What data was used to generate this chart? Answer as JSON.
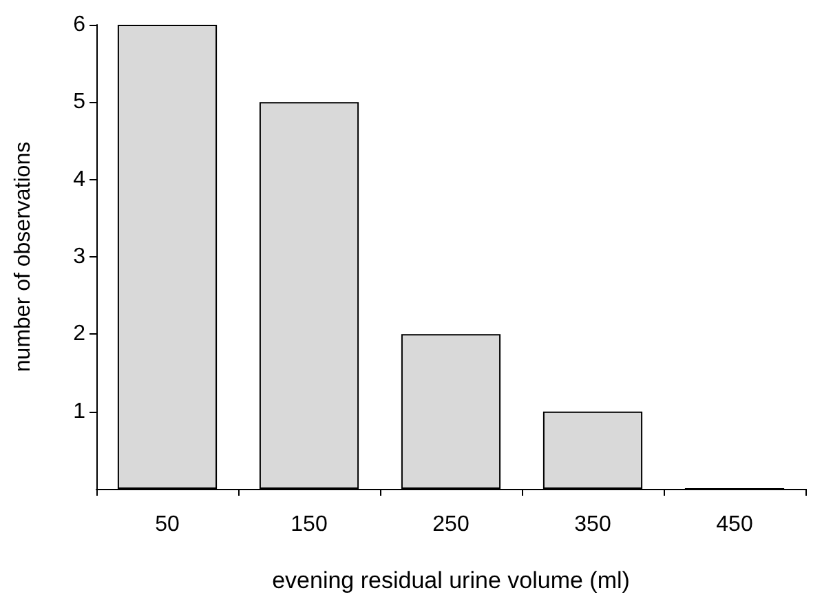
{
  "chart_data": {
    "type": "bar",
    "xlabel": "evening residual urine volume (ml)",
    "ylabel": "number of observations",
    "categories": [
      "50",
      "150",
      "250",
      "350",
      "450"
    ],
    "values": [
      6,
      5,
      2,
      1,
      0
    ],
    "color": "#d9d9d9",
    "ylim": [
      0,
      6
    ],
    "yticks": [
      1,
      2,
      3,
      4,
      5,
      6
    ],
    "grid": false
  }
}
